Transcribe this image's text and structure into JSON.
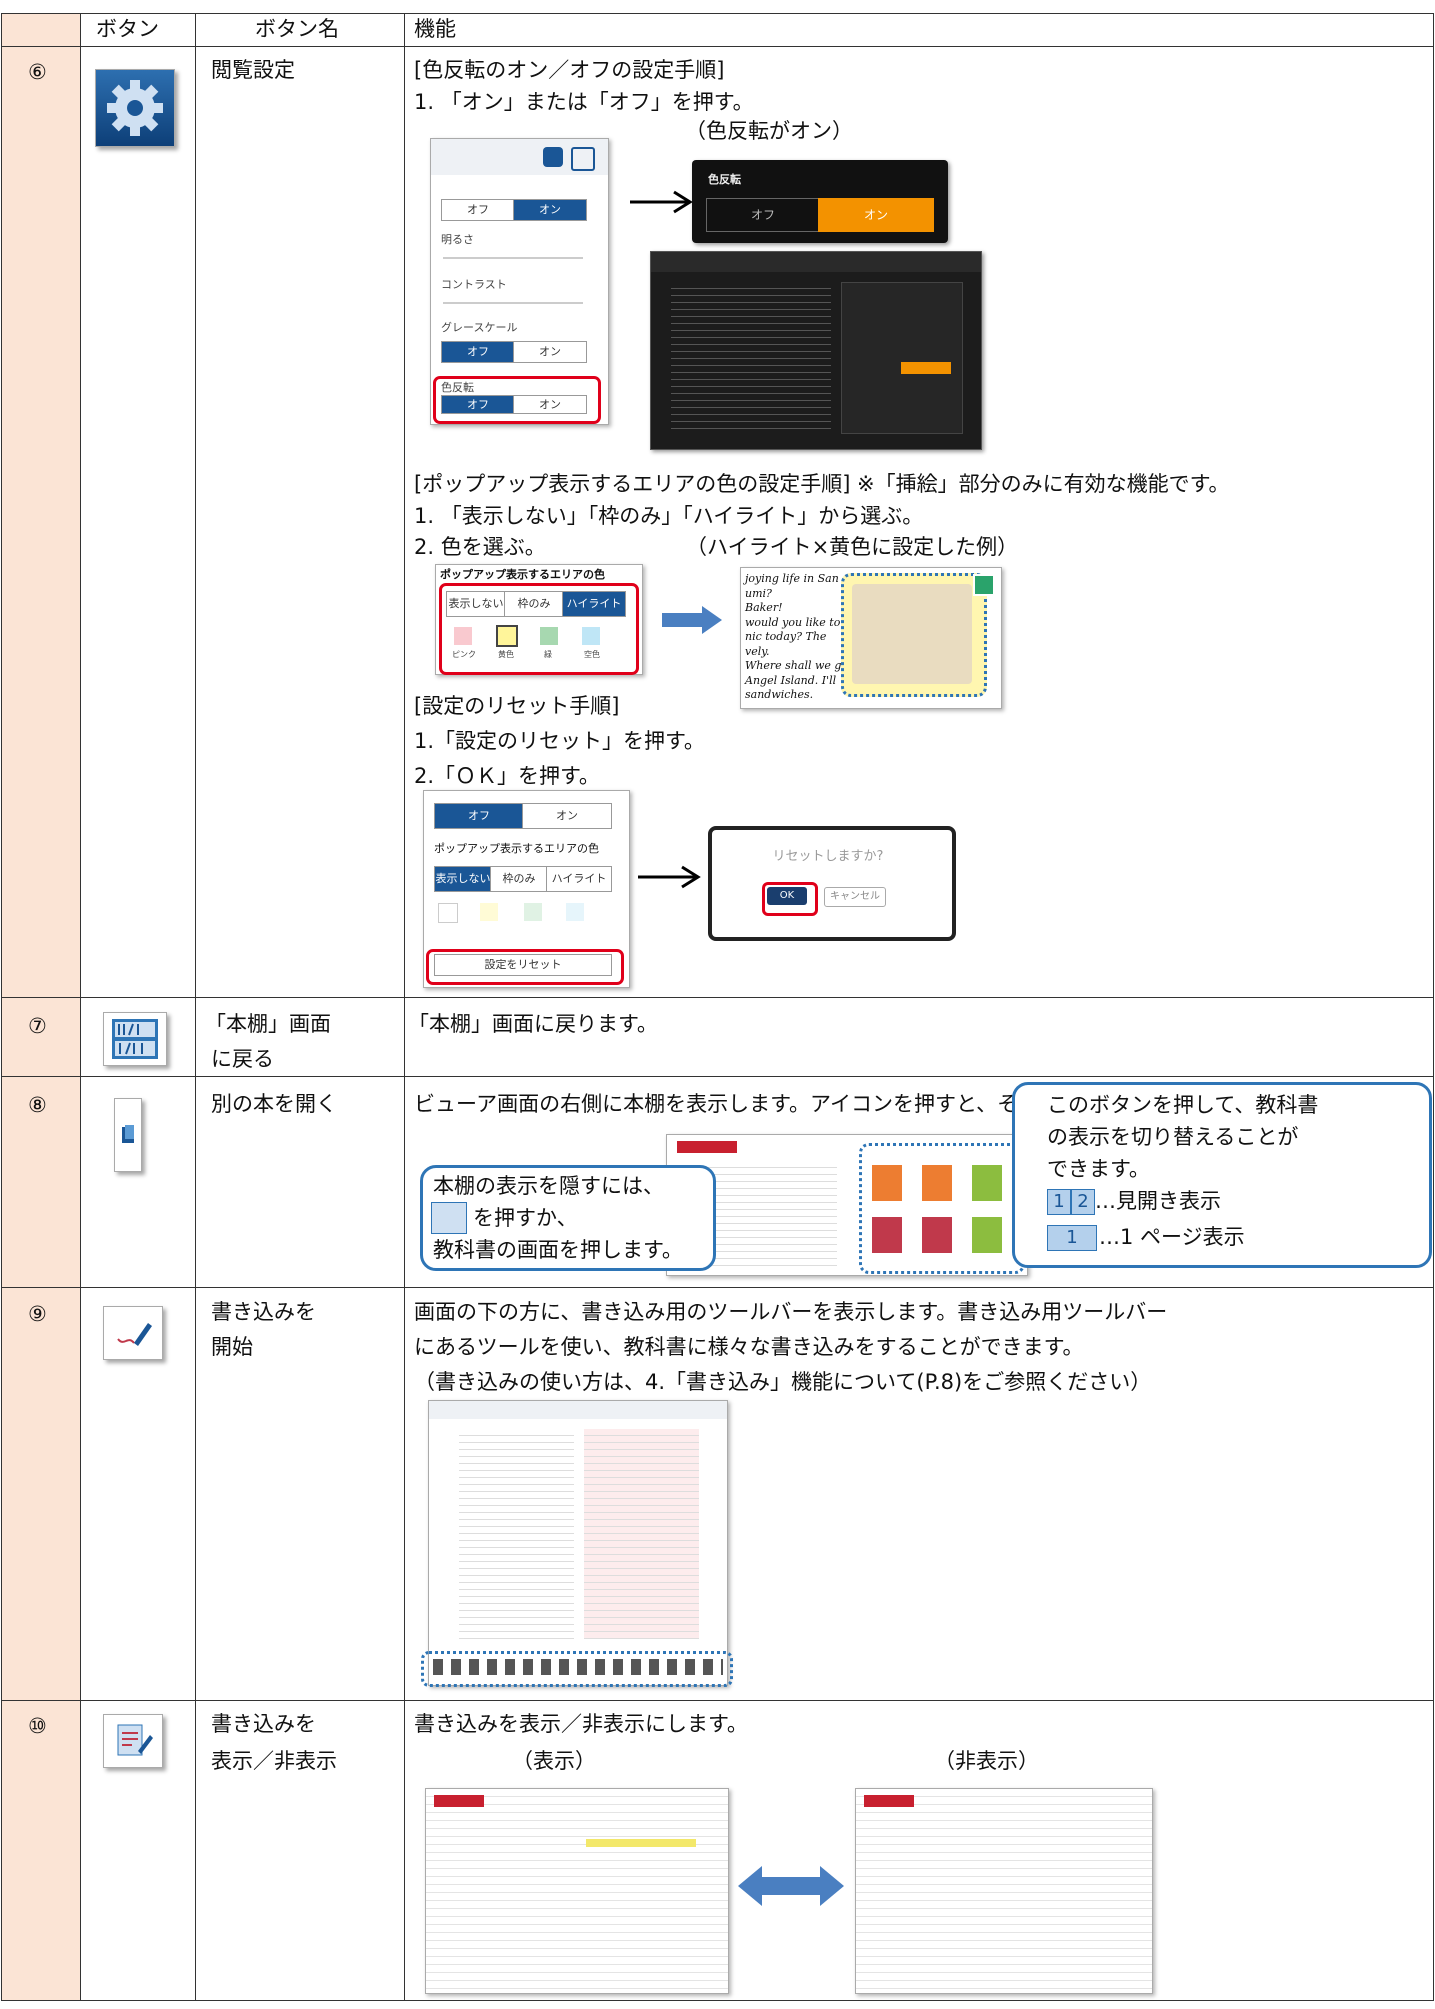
{
  "table": {
    "header": [
      "ボタン",
      "ボタン名",
      "機能"
    ],
    "rows": [
      {
        "number": "⑥",
        "name": [
          "閲覧設定"
        ],
        "text": [
          "[色反転のオン／オフの設定手順]",
          "1. 「オン」または「オフ」を押す。",
          "[ポップアップ表示するエリアの色の設定手順] ※「挿絵」部分のみに有効な機能です。",
          "1. 「表示しない」「枠のみ」「ハイライト」から選ぶ。",
          "2. 色を選ぶ。",
          "[設定のリセット手順]",
          "1.「設定のリセット」を押す。",
          "2.「ＯＫ」を押す。"
        ],
        "captions": [
          "（色反転がオン）",
          "（ハイライト×黄色に設定した例）"
        ],
        "settings_panel": {
          "items": [
            "明るさ",
            "コントラスト",
            "グレースケール",
            "色反転"
          ],
          "off": "オフ",
          "on": "オン"
        },
        "invert_panel": {
          "title": "色反転",
          "off": "オフ",
          "on": "オン"
        },
        "popup_panel": {
          "title": "ポップアップ表示するエリアの色",
          "modes": [
            "表示しない",
            "枠のみ",
            "ハイライト"
          ],
          "colors": [
            "ピンク",
            "黄色",
            "緑",
            "空色"
          ]
        },
        "popup_example": [
          "joying life in San",
          "umi?",
          "Baker!",
          "would you like to",
          "nic today? The",
          "vely.",
          "Where shall we go?",
          "Angel Island. I'll",
          "sandwiches."
        ],
        "reset_panel": {
          "button": "設定をリセット"
        },
        "reset_dialog": {
          "message": "リセットしますか?",
          "ok": "OK",
          "cancel": "キャンセル"
        }
      },
      {
        "number": "⑦",
        "name": [
          "「本棚」画面",
          "に戻る"
        ],
        "text": [
          "「本棚」画面に戻ります。"
        ]
      },
      {
        "number": "⑧",
        "name": [
          "別の本を開く"
        ],
        "text": [
          "ビューア画面の右側に本棚を表示します。アイコンを押すと、その本が開きます。"
        ],
        "callout_left": [
          "本棚の表示を隠すには、",
          "を押すか、",
          "教科書の画面を押します。"
        ],
        "callout_right": [
          "このボタンを押して、教科書",
          "の表示を切り替えることが",
          "できます。",
          "…見開き表示",
          "…1 ページ表示"
        ],
        "page_icons": [
          "1",
          "2",
          "1"
        ]
      },
      {
        "number": "⑨",
        "name": [
          "書き込みを",
          "開始"
        ],
        "text": [
          "画面の下の方に、書き込み用のツールバーを表示します。書き込み用ツールバー",
          "にあるツールを使い、教科書に様々な書き込みをすることができます。",
          "（書き込みの使い方は、4.「書き込み」機能について(P.8)をご参照ください）"
        ]
      },
      {
        "number": "⑩",
        "name": [
          "書き込みを",
          "表示／非表示"
        ],
        "text": [
          "書き込みを表示／非表示にします。"
        ],
        "captions": [
          "（表示）",
          "（非表示）"
        ]
      }
    ]
  }
}
